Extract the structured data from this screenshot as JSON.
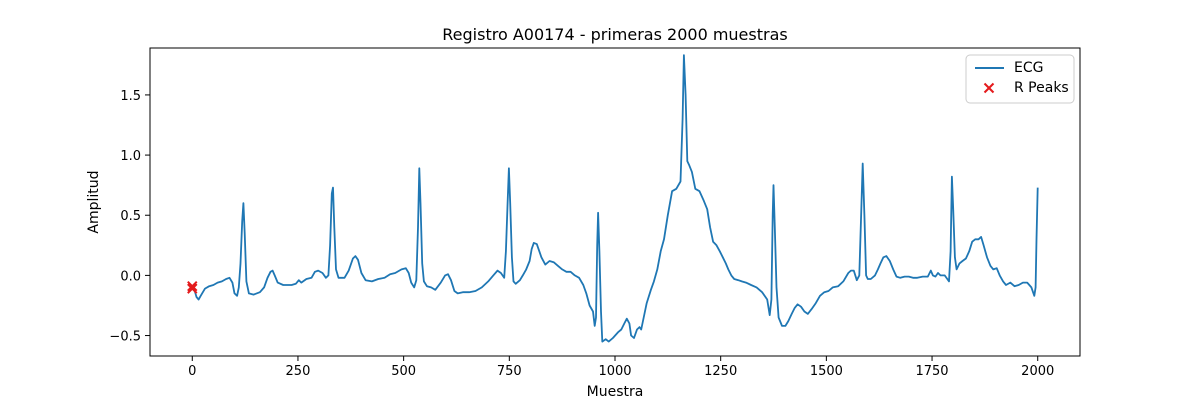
{
  "chart_data": {
    "type": "line",
    "title": "Registro A00174 - primeras 2000 muestras",
    "xlabel": "Muestra",
    "ylabel": "Amplitud",
    "xlim": [
      -100,
      2100
    ],
    "ylim": [
      -0.67,
      1.89
    ],
    "xticks": [
      0,
      250,
      500,
      750,
      1000,
      1250,
      1500,
      1750,
      2000
    ],
    "yticks": [
      -0.5,
      0.0,
      0.5,
      1.0,
      1.5
    ],
    "xtick_labels": [
      "0",
      "250",
      "500",
      "750",
      "1000",
      "1250",
      "1500",
      "1750",
      "2000"
    ],
    "ytick_labels": [
      "−0.5",
      "0.0",
      "0.5",
      "1.0",
      "1.5"
    ],
    "grid": false,
    "legend_position": "upper-right",
    "series": [
      {
        "name": "ECG",
        "type": "line",
        "color": "#1f77b4",
        "points": [
          [
            0,
            -0.09
          ],
          [
            5,
            -0.12
          ],
          [
            10,
            -0.18
          ],
          [
            15,
            -0.2
          ],
          [
            20,
            -0.17
          ],
          [
            30,
            -0.11
          ],
          [
            40,
            -0.09
          ],
          [
            50,
            -0.08
          ],
          [
            60,
            -0.06
          ],
          [
            70,
            -0.05
          ],
          [
            80,
            -0.03
          ],
          [
            88,
            -0.02
          ],
          [
            95,
            -0.06
          ],
          [
            100,
            -0.15
          ],
          [
            106,
            -0.17
          ],
          [
            110,
            -0.1
          ],
          [
            114,
            0.1
          ],
          [
            118,
            0.45
          ],
          [
            121,
            0.6
          ],
          [
            124,
            0.35
          ],
          [
            128,
            -0.05
          ],
          [
            134,
            -0.15
          ],
          [
            145,
            -0.16
          ],
          [
            160,
            -0.14
          ],
          [
            170,
            -0.1
          ],
          [
            178,
            -0.02
          ],
          [
            185,
            0.03
          ],
          [
            190,
            0.04
          ],
          [
            195,
            0.0
          ],
          [
            202,
            -0.06
          ],
          [
            215,
            -0.08
          ],
          [
            235,
            -0.08
          ],
          [
            245,
            -0.07
          ],
          [
            252,
            -0.04
          ],
          [
            258,
            -0.06
          ],
          [
            270,
            -0.03
          ],
          [
            282,
            -0.02
          ],
          [
            290,
            0.03
          ],
          [
            298,
            0.04
          ],
          [
            308,
            0.02
          ],
          [
            316,
            -0.02
          ],
          [
            322,
            0.0
          ],
          [
            326,
            0.25
          ],
          [
            330,
            0.68
          ],
          [
            333,
            0.73
          ],
          [
            336,
            0.4
          ],
          [
            340,
            0.05
          ],
          [
            346,
            -0.02
          ],
          [
            360,
            -0.02
          ],
          [
            370,
            0.04
          ],
          [
            380,
            0.14
          ],
          [
            386,
            0.16
          ],
          [
            392,
            0.13
          ],
          [
            400,
            0.02
          ],
          [
            410,
            -0.04
          ],
          [
            425,
            -0.05
          ],
          [
            440,
            -0.03
          ],
          [
            455,
            -0.02
          ],
          [
            468,
            0.01
          ],
          [
            480,
            0.02
          ],
          [
            495,
            0.05
          ],
          [
            505,
            0.06
          ],
          [
            512,
            0.02
          ],
          [
            518,
            -0.06
          ],
          [
            525,
            -0.1
          ],
          [
            530,
            -0.04
          ],
          [
            534,
            0.4
          ],
          [
            537,
            0.89
          ],
          [
            540,
            0.6
          ],
          [
            544,
            0.1
          ],
          [
            548,
            -0.05
          ],
          [
            555,
            -0.09
          ],
          [
            565,
            -0.1
          ],
          [
            575,
            -0.12
          ],
          [
            588,
            -0.06
          ],
          [
            598,
            0.0
          ],
          [
            605,
            0.01
          ],
          [
            612,
            -0.04
          ],
          [
            620,
            -0.13
          ],
          [
            628,
            -0.15
          ],
          [
            640,
            -0.14
          ],
          [
            655,
            -0.14
          ],
          [
            670,
            -0.13
          ],
          [
            685,
            -0.1
          ],
          [
            700,
            -0.05
          ],
          [
            712,
            0.0
          ],
          [
            722,
            0.04
          ],
          [
            730,
            0.02
          ],
          [
            738,
            -0.02
          ],
          [
            742,
            0.2
          ],
          [
            746,
            0.6
          ],
          [
            749,
            0.89
          ],
          [
            752,
            0.6
          ],
          [
            756,
            0.15
          ],
          [
            760,
            -0.05
          ],
          [
            765,
            -0.07
          ],
          [
            775,
            -0.04
          ],
          [
            782,
            0.0
          ],
          [
            790,
            0.05
          ],
          [
            798,
            0.12
          ],
          [
            803,
            0.22
          ],
          [
            808,
            0.27
          ],
          [
            815,
            0.26
          ],
          [
            820,
            0.21
          ],
          [
            826,
            0.15
          ],
          [
            835,
            0.09
          ],
          [
            845,
            0.12
          ],
          [
            855,
            0.11
          ],
          [
            865,
            0.08
          ],
          [
            875,
            0.05
          ],
          [
            885,
            0.03
          ],
          [
            895,
            0.03
          ],
          [
            905,
            0.0
          ],
          [
            915,
            -0.02
          ],
          [
            925,
            -0.08
          ],
          [
            932,
            -0.15
          ],
          [
            940,
            -0.25
          ],
          [
            948,
            -0.3
          ],
          [
            952,
            -0.42
          ],
          [
            955,
            -0.35
          ],
          [
            958,
            0.25
          ],
          [
            960,
            0.52
          ],
          [
            963,
            0.2
          ],
          [
            967,
            -0.3
          ],
          [
            970,
            -0.55
          ],
          [
            978,
            -0.53
          ],
          [
            985,
            -0.55
          ],
          [
            995,
            -0.52
          ],
          [
            1008,
            -0.47
          ],
          [
            1015,
            -0.45
          ],
          [
            1022,
            -0.4
          ],
          [
            1028,
            -0.36
          ],
          [
            1034,
            -0.4
          ],
          [
            1038,
            -0.5
          ],
          [
            1045,
            -0.52
          ],
          [
            1052,
            -0.45
          ],
          [
            1058,
            -0.43
          ],
          [
            1062,
            -0.45
          ],
          [
            1068,
            -0.35
          ],
          [
            1075,
            -0.23
          ],
          [
            1085,
            -0.12
          ],
          [
            1092,
            -0.05
          ],
          [
            1100,
            0.05
          ],
          [
            1108,
            0.2
          ],
          [
            1116,
            0.3
          ],
          [
            1125,
            0.5
          ],
          [
            1135,
            0.7
          ],
          [
            1145,
            0.72
          ],
          [
            1155,
            0.78
          ],
          [
            1160,
            1.3
          ],
          [
            1163,
            1.83
          ],
          [
            1167,
            1.5
          ],
          [
            1171,
            0.95
          ],
          [
            1175,
            0.92
          ],
          [
            1182,
            0.86
          ],
          [
            1190,
            0.72
          ],
          [
            1200,
            0.7
          ],
          [
            1210,
            0.62
          ],
          [
            1218,
            0.55
          ],
          [
            1225,
            0.4
          ],
          [
            1232,
            0.28
          ],
          [
            1240,
            0.25
          ],
          [
            1248,
            0.2
          ],
          [
            1255,
            0.15
          ],
          [
            1262,
            0.1
          ],
          [
            1268,
            0.05
          ],
          [
            1275,
            0.0
          ],
          [
            1282,
            -0.03
          ],
          [
            1292,
            -0.04
          ],
          [
            1300,
            -0.05
          ],
          [
            1310,
            -0.06
          ],
          [
            1322,
            -0.08
          ],
          [
            1335,
            -0.1
          ],
          [
            1348,
            -0.14
          ],
          [
            1360,
            -0.2
          ],
          [
            1366,
            -0.33
          ],
          [
            1370,
            -0.2
          ],
          [
            1373,
            0.5
          ],
          [
            1375,
            0.75
          ],
          [
            1378,
            0.4
          ],
          [
            1382,
            -0.1
          ],
          [
            1387,
            -0.35
          ],
          [
            1395,
            -0.42
          ],
          [
            1403,
            -0.42
          ],
          [
            1410,
            -0.38
          ],
          [
            1418,
            -0.32
          ],
          [
            1425,
            -0.27
          ],
          [
            1432,
            -0.24
          ],
          [
            1440,
            -0.26
          ],
          [
            1448,
            -0.3
          ],
          [
            1456,
            -0.32
          ],
          [
            1465,
            -0.28
          ],
          [
            1475,
            -0.23
          ],
          [
            1485,
            -0.17
          ],
          [
            1495,
            -0.14
          ],
          [
            1505,
            -0.13
          ],
          [
            1515,
            -0.1
          ],
          [
            1528,
            -0.09
          ],
          [
            1540,
            -0.05
          ],
          [
            1552,
            0.02
          ],
          [
            1558,
            0.04
          ],
          [
            1565,
            0.04
          ],
          [
            1572,
            -0.04
          ],
          [
            1578,
            0.0
          ],
          [
            1583,
            0.6
          ],
          [
            1586,
            0.93
          ],
          [
            1590,
            0.5
          ],
          [
            1594,
            0.0
          ],
          [
            1598,
            -0.03
          ],
          [
            1605,
            -0.03
          ],
          [
            1615,
            0.0
          ],
          [
            1622,
            0.05
          ],
          [
            1628,
            0.1
          ],
          [
            1635,
            0.15
          ],
          [
            1642,
            0.16
          ],
          [
            1650,
            0.12
          ],
          [
            1658,
            0.05
          ],
          [
            1666,
            -0.01
          ],
          [
            1675,
            -0.02
          ],
          [
            1685,
            -0.01
          ],
          [
            1695,
            -0.01
          ],
          [
            1705,
            -0.02
          ],
          [
            1715,
            -0.02
          ],
          [
            1728,
            -0.01
          ],
          [
            1740,
            -0.01
          ],
          [
            1747,
            0.04
          ],
          [
            1752,
            0.0
          ],
          [
            1758,
            -0.01
          ],
          [
            1764,
            0.02
          ],
          [
            1770,
            0.0
          ],
          [
            1780,
            0.0
          ],
          [
            1790,
            -0.05
          ],
          [
            1794,
            0.2
          ],
          [
            1797,
            0.82
          ],
          [
            1800,
            0.55
          ],
          [
            1804,
            0.15
          ],
          [
            1808,
            0.05
          ],
          [
            1815,
            0.1
          ],
          [
            1822,
            0.12
          ],
          [
            1830,
            0.14
          ],
          [
            1838,
            0.2
          ],
          [
            1845,
            0.28
          ],
          [
            1852,
            0.3
          ],
          [
            1860,
            0.3
          ],
          [
            1866,
            0.32
          ],
          [
            1872,
            0.25
          ],
          [
            1880,
            0.15
          ],
          [
            1888,
            0.08
          ],
          [
            1895,
            0.05
          ],
          [
            1903,
            0.06
          ],
          [
            1910,
            0.0
          ],
          [
            1918,
            -0.05
          ],
          [
            1925,
            -0.08
          ],
          [
            1935,
            -0.06
          ],
          [
            1945,
            -0.09
          ],
          [
            1955,
            -0.08
          ],
          [
            1965,
            -0.06
          ],
          [
            1975,
            -0.06
          ],
          [
            1985,
            -0.1
          ],
          [
            1992,
            -0.17
          ],
          [
            1995,
            -0.1
          ],
          [
            1997,
            0.3
          ],
          [
            2000,
            0.73
          ]
        ]
      },
      {
        "name": "R Peaks",
        "type": "scatter",
        "marker": "x",
        "color": "#e41a1c",
        "points": [
          [
            0,
            -0.09
          ],
          [
            0,
            -0.11
          ]
        ]
      }
    ]
  }
}
